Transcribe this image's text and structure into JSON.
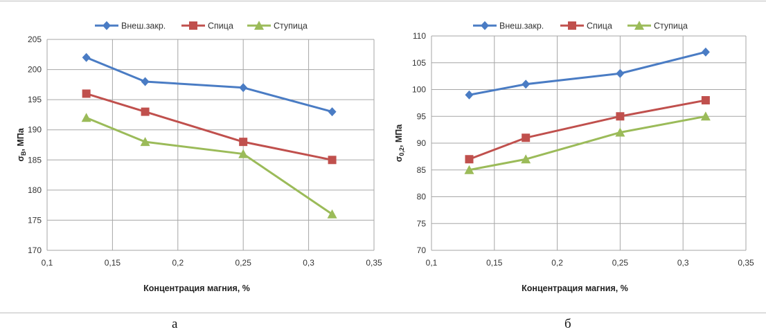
{
  "chart_data": [
    {
      "panel": "а",
      "type": "line",
      "xlabel": "Концентрация магния, %",
      "ylabel": "σB, МПа",
      "ylabel_main": "σ",
      "ylabel_sub": "B",
      "ylabel_rest": ", МПа",
      "xlim": [
        0.1,
        0.35
      ],
      "ylim": [
        170,
        205
      ],
      "xticks": [
        0.1,
        0.15,
        0.2,
        0.25,
        0.3,
        0.35
      ],
      "xtick_labels": [
        "0,1",
        "0,15",
        "0,2",
        "0,25",
        "0,3",
        "0,35"
      ],
      "yticks": [
        170,
        175,
        180,
        185,
        190,
        195,
        200,
        205
      ],
      "ytick_labels": [
        "170",
        "175",
        "180",
        "185",
        "190",
        "195",
        "200",
        "205"
      ],
      "grid": true,
      "legend_position": "top",
      "x": [
        0.13,
        0.175,
        0.25,
        0.318
      ],
      "series": [
        {
          "name": "Внеш.закр.",
          "values": [
            202,
            198,
            197,
            193
          ],
          "color": "#4a7cc4",
          "marker": "diamond"
        },
        {
          "name": "Спица",
          "values": [
            196,
            193,
            188,
            185
          ],
          "color": "#c0504d",
          "marker": "square"
        },
        {
          "name": "Ступица",
          "values": [
            192,
            188,
            186,
            176
          ],
          "color": "#9bbb59",
          "marker": "triangle"
        }
      ]
    },
    {
      "panel": "б",
      "type": "line",
      "xlabel": "Концентрация магния, %",
      "ylabel": "σ0,2, МПа",
      "ylabel_main": "σ",
      "ylabel_sub": "0,2",
      "ylabel_rest": ", МПа",
      "xlim": [
        0.1,
        0.35
      ],
      "ylim": [
        70,
        110
      ],
      "xticks": [
        0.1,
        0.15,
        0.2,
        0.25,
        0.3,
        0.35
      ],
      "xtick_labels": [
        "0,1",
        "0,15",
        "0,2",
        "0,25",
        "0,3",
        "0,35"
      ],
      "yticks": [
        70,
        75,
        80,
        85,
        90,
        95,
        100,
        105,
        110
      ],
      "ytick_labels": [
        "70",
        "75",
        "80",
        "85",
        "90",
        "95",
        "100",
        "105",
        "110"
      ],
      "grid": true,
      "legend_position": "top",
      "x": [
        0.13,
        0.175,
        0.25,
        0.318
      ],
      "series": [
        {
          "name": "Внеш.закр.",
          "values": [
            99,
            101,
            103,
            107
          ],
          "color": "#4a7cc4",
          "marker": "diamond"
        },
        {
          "name": "Спица",
          "values": [
            87,
            91,
            95,
            98
          ],
          "color": "#c0504d",
          "marker": "square"
        },
        {
          "name": "Ступица",
          "values": [
            85,
            87,
            92,
            95
          ],
          "color": "#9bbb59",
          "marker": "triangle"
        }
      ]
    }
  ]
}
